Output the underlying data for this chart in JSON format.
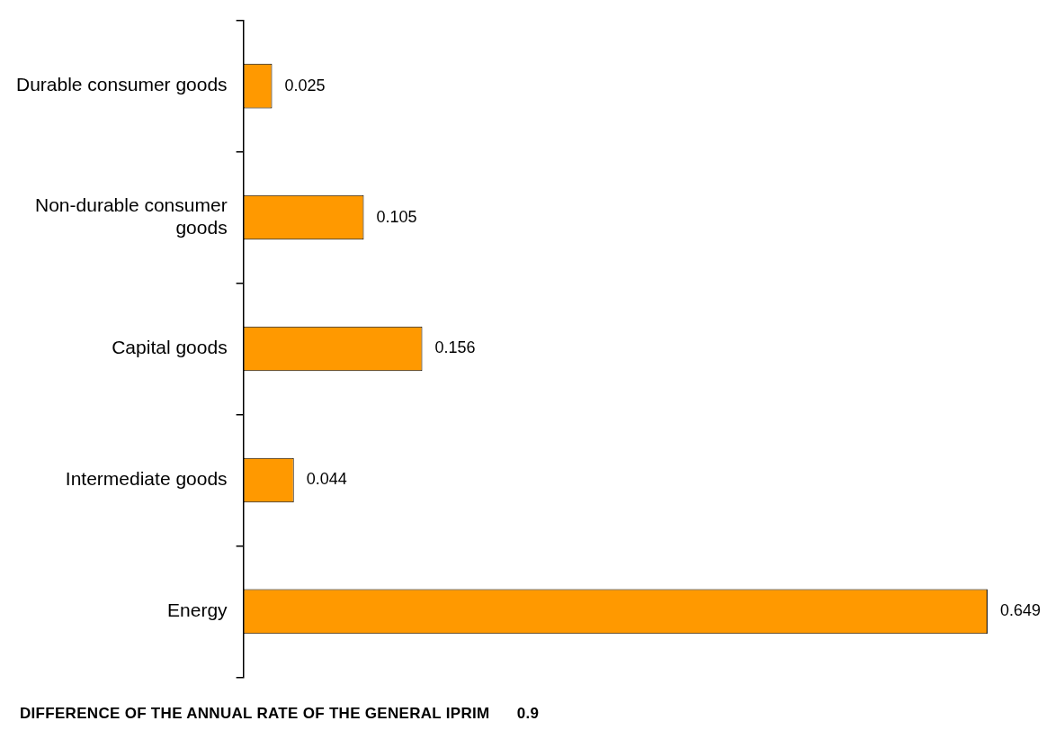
{
  "chart_data": {
    "type": "bar",
    "orientation": "horizontal",
    "categories": [
      "Durable consumer goods",
      "Non-durable consumer goods",
      "Capital goods",
      "Intermediate goods",
      "Energy"
    ],
    "values": [
      0.025,
      0.105,
      0.156,
      0.044,
      0.649
    ],
    "color": "#ff9900",
    "data_labels": true,
    "tick_labels": "y",
    "annotations": [
      "DIFFERENCE OF THE ANNUAL RATE OF THE GENERAL IPRIM      0.9"
    ]
  }
}
